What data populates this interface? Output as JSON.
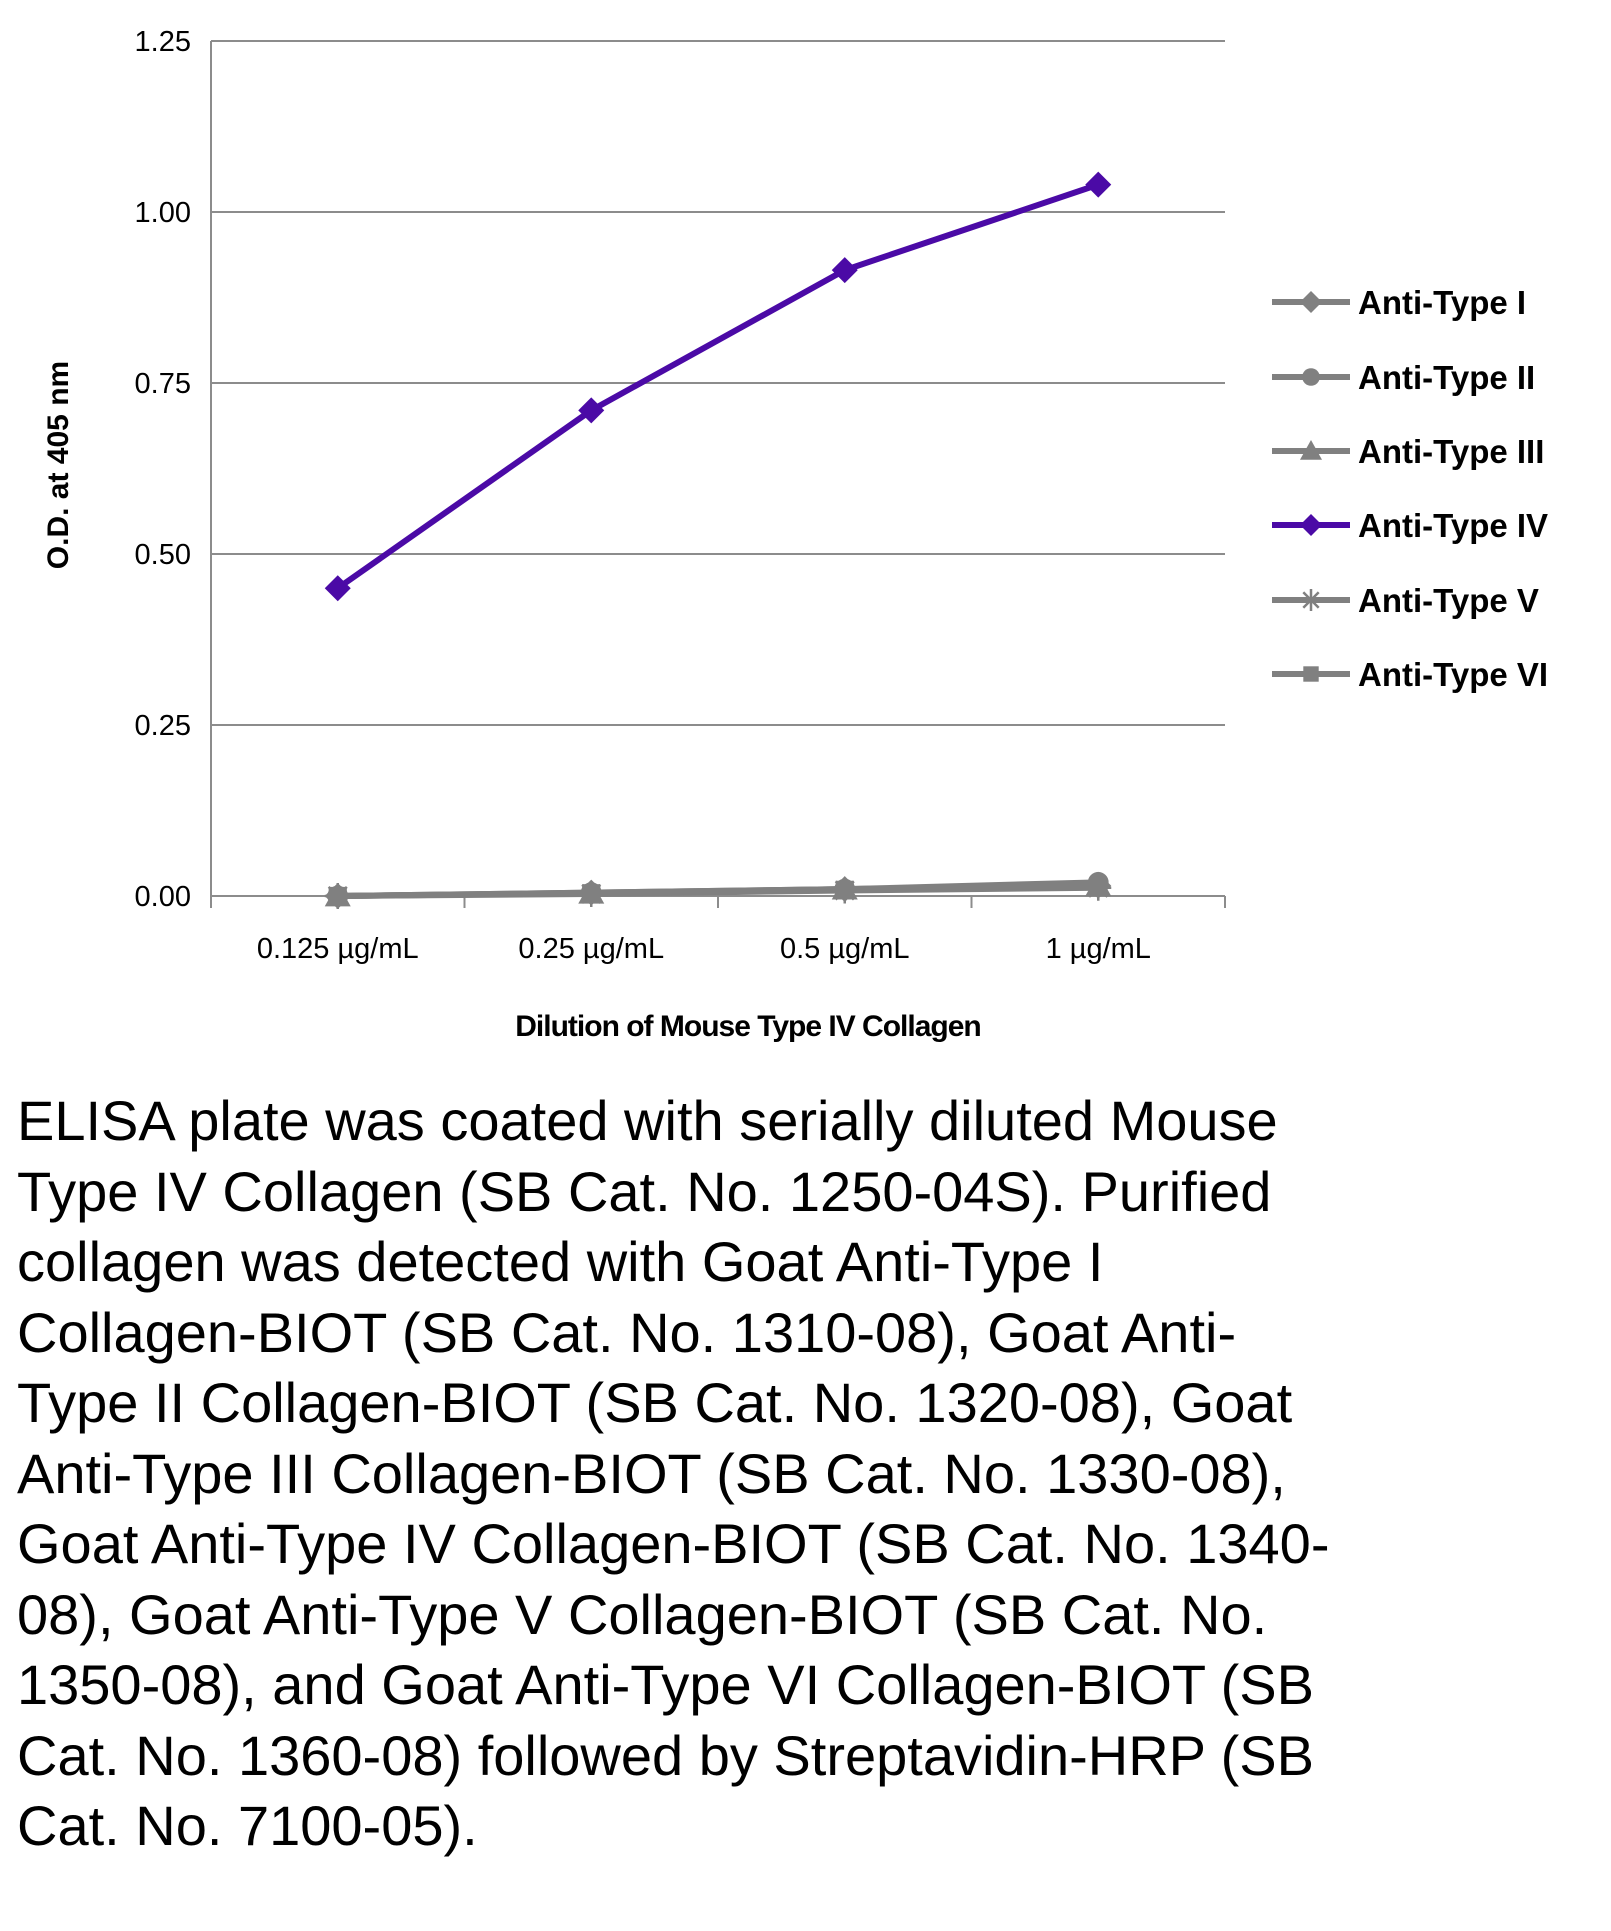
{
  "chart_data": {
    "type": "line",
    "title": "",
    "xlabel": "Dilution of Mouse Type IV Collagen",
    "ylabel": "O.D. at 405 nm",
    "categories": [
      "0.125 µg/mL",
      "0.25 µg/mL",
      "0.5 µg/mL",
      "1 µg/mL"
    ],
    "ylim": [
      0,
      1.25
    ],
    "yticks": [
      "0.00",
      "0.25",
      "0.50",
      "0.75",
      "1.00",
      "1.25"
    ],
    "grid": true,
    "legend_position": "right",
    "series": [
      {
        "name": "Anti-Type I",
        "marker": "diamond",
        "color": "#808080",
        "values": [
          0.0,
          0.005,
          0.01,
          0.015
        ]
      },
      {
        "name": "Anti-Type II",
        "marker": "circle",
        "color": "#808080",
        "values": [
          0.0,
          0.005,
          0.01,
          0.02
        ]
      },
      {
        "name": "Anti-Type III",
        "marker": "triangle",
        "color": "#808080",
        "values": [
          0.0,
          0.004,
          0.01,
          0.015
        ]
      },
      {
        "name": "Anti-Type IV",
        "marker": "diamond",
        "color": "#4B0AA6",
        "values": [
          0.45,
          0.71,
          0.915,
          1.04
        ]
      },
      {
        "name": "Anti-Type V",
        "marker": "star",
        "color": "#808080",
        "values": [
          0.0,
          0.003,
          0.008,
          0.012
        ]
      },
      {
        "name": "Anti-Type VI",
        "marker": "square",
        "color": "#808080",
        "values": [
          0.0,
          0.004,
          0.009,
          0.014
        ]
      }
    ]
  },
  "caption": "ELISA plate was coated with serially diluted Mouse Type IV Collagen (SB Cat. No. 1250-04S).  Purified collagen was detected with Goat Anti-Type I Collagen-BIOT (SB Cat. No. 1310-08), Goat Anti-Type II Collagen-BIOT (SB Cat. No. 1320-08), Goat Anti-Type III Collagen-BIOT (SB Cat. No. 1330-08), Goat Anti-Type IV Collagen-BIOT (SB Cat. No. 1340-08), Goat Anti-Type V Collagen-BIOT (SB Cat. No. 1350-08), and Goat Anti-Type VI Collagen-BIOT (SB Cat. No. 1360-08) followed by Streptavidin-HRP (SB Cat. No. 7100-05)."
}
